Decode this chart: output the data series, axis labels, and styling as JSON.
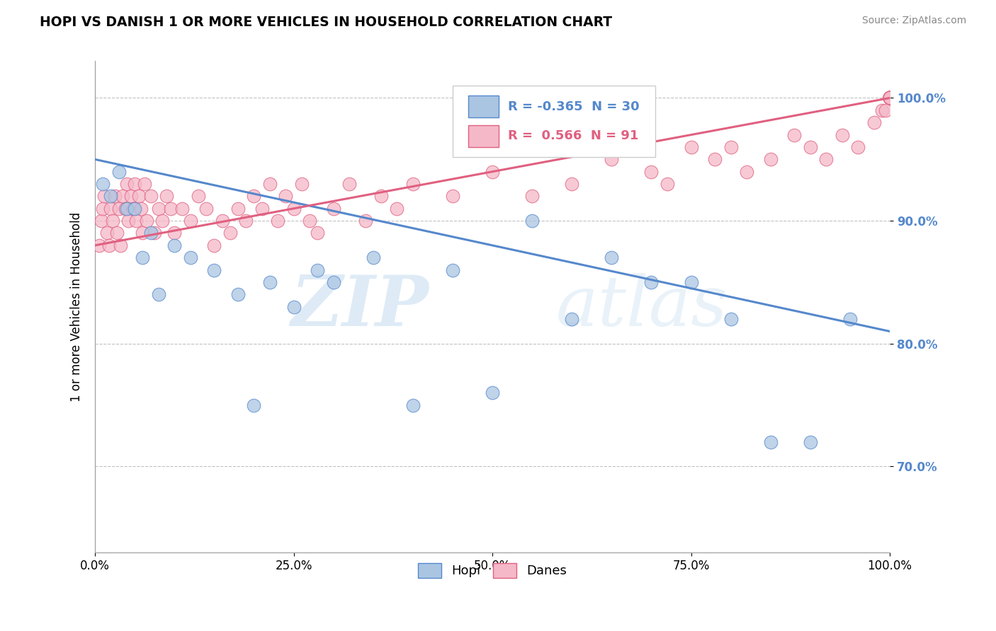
{
  "title": "HOPI VS DANISH 1 OR MORE VEHICLES IN HOUSEHOLD CORRELATION CHART",
  "source": "Source: ZipAtlas.com",
  "ylabel": "1 or more Vehicles in Household",
  "xlim": [
    0,
    100
  ],
  "ylim": [
    63,
    103
  ],
  "yticks": [
    70,
    80,
    90,
    100
  ],
  "xticks": [
    0,
    25,
    50,
    75,
    100
  ],
  "hopi_R": -0.365,
  "hopi_N": 30,
  "danes_R": 0.566,
  "danes_N": 91,
  "hopi_color": "#aac5e2",
  "danes_color": "#f5b8c8",
  "hopi_line_color": "#5588cc",
  "danes_line_color": "#e06080",
  "watermark_zip": "ZIP",
  "watermark_atlas": "atlas",
  "hopi_x": [
    1.0,
    2.0,
    3.0,
    4.0,
    5.0,
    6.0,
    7.0,
    8.0,
    10.0,
    12.0,
    15.0,
    18.0,
    20.0,
    22.0,
    25.0,
    28.0,
    30.0,
    35.0,
    40.0,
    45.0,
    50.0,
    55.0,
    60.0,
    65.0,
    70.0,
    75.0,
    80.0,
    85.0,
    90.0,
    95.0
  ],
  "hopi_y": [
    93.0,
    92.0,
    94.0,
    91.0,
    91.0,
    87.0,
    89.0,
    84.0,
    88.0,
    87.0,
    86.0,
    84.0,
    75.0,
    85.0,
    83.0,
    86.0,
    85.0,
    87.0,
    75.0,
    86.0,
    76.0,
    90.0,
    82.0,
    87.0,
    85.0,
    85.0,
    82.0,
    72.0,
    72.0,
    82.0
  ],
  "danes_x": [
    0.5,
    0.8,
    1.0,
    1.2,
    1.5,
    1.8,
    2.0,
    2.2,
    2.5,
    2.8,
    3.0,
    3.2,
    3.5,
    3.8,
    4.0,
    4.2,
    4.5,
    4.8,
    5.0,
    5.2,
    5.5,
    5.8,
    6.0,
    6.2,
    6.5,
    7.0,
    7.5,
    8.0,
    8.5,
    9.0,
    9.5,
    10.0,
    11.0,
    12.0,
    13.0,
    14.0,
    15.0,
    16.0,
    17.0,
    18.0,
    19.0,
    20.0,
    21.0,
    22.0,
    23.0,
    24.0,
    25.0,
    26.0,
    27.0,
    28.0,
    30.0,
    32.0,
    34.0,
    36.0,
    38.0,
    40.0,
    45.0,
    50.0,
    55.0,
    60.0,
    65.0,
    70.0,
    72.0,
    75.0,
    78.0,
    80.0,
    82.0,
    85.0,
    88.0,
    90.0,
    92.0,
    94.0,
    96.0,
    98.0,
    99.0,
    99.5,
    100.0,
    100.0,
    100.0,
    100.0,
    100.0,
    100.0,
    100.0,
    100.0,
    100.0,
    100.0,
    100.0,
    100.0,
    100.0,
    100.0,
    100.0
  ],
  "danes_y": [
    88.0,
    90.0,
    91.0,
    92.0,
    89.0,
    88.0,
    91.0,
    90.0,
    92.0,
    89.0,
    91.0,
    88.0,
    92.0,
    91.0,
    93.0,
    90.0,
    92.0,
    91.0,
    93.0,
    90.0,
    92.0,
    91.0,
    89.0,
    93.0,
    90.0,
    92.0,
    89.0,
    91.0,
    90.0,
    92.0,
    91.0,
    89.0,
    91.0,
    90.0,
    92.0,
    91.0,
    88.0,
    90.0,
    89.0,
    91.0,
    90.0,
    92.0,
    91.0,
    93.0,
    90.0,
    92.0,
    91.0,
    93.0,
    90.0,
    89.0,
    91.0,
    93.0,
    90.0,
    92.0,
    91.0,
    93.0,
    92.0,
    94.0,
    92.0,
    93.0,
    95.0,
    94.0,
    93.0,
    96.0,
    95.0,
    96.0,
    94.0,
    95.0,
    97.0,
    96.0,
    95.0,
    97.0,
    96.0,
    98.0,
    99.0,
    99.0,
    100.0,
    100.0,
    100.0,
    100.0,
    100.0,
    100.0,
    100.0,
    100.0,
    100.0,
    100.0,
    100.0,
    100.0,
    100.0,
    100.0,
    100.0
  ],
  "hopi_line_start_y": 95.0,
  "hopi_line_end_y": 81.0,
  "danes_line_start_y": 88.0,
  "danes_line_end_y": 100.0
}
